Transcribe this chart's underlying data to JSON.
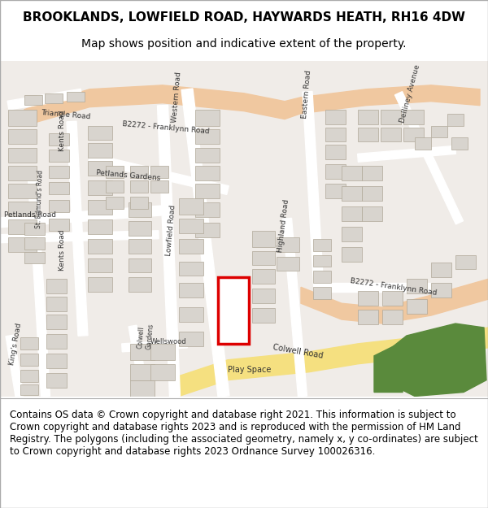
{
  "title": "BROOKLANDS, LOWFIELD ROAD, HAYWARDS HEATH, RH16 4DW",
  "subtitle": "Map shows position and indicative extent of the property.",
  "footer": "Contains OS data © Crown copyright and database right 2021. This information is subject to Crown copyright and database rights 2023 and is reproduced with the permission of HM Land Registry. The polygons (including the associated geometry, namely x, y co-ordinates) are subject to Crown copyright and database rights 2023 Ordnance Survey 100026316.",
  "title_fontsize": 11,
  "subtitle_fontsize": 10,
  "footer_fontsize": 8.5,
  "map_bg": "#f0ece8",
  "road_color": "#ffffff",
  "major_road_color": "#f5d9a0",
  "building_color": "#d8d4ce",
  "building_edge": "#b0a898",
  "green_color": "#5a8a3c",
  "red_rect_color": "#dd0000",
  "fig_width": 6.0,
  "fig_height": 6.25
}
